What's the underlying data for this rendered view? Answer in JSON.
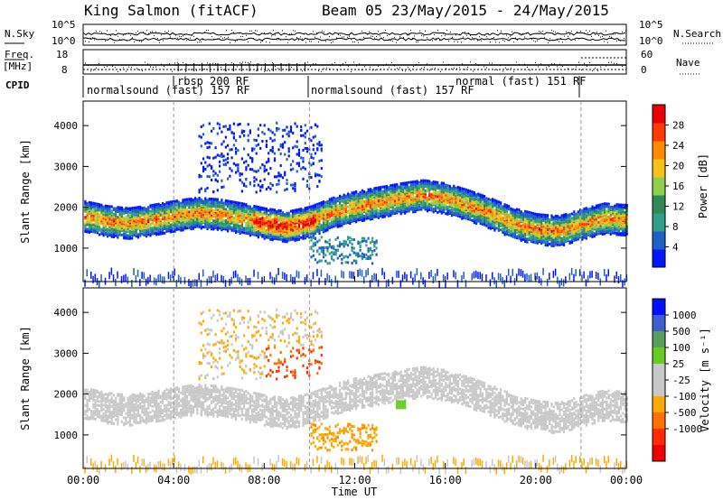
{
  "header": {
    "station": "King Salmon (fitACF)",
    "beam_date": "Beam 05 23/May/2015 - 24/May/2015"
  },
  "noise_panel": {
    "left_label": "N.Sky",
    "right_label": "N.Search",
    "left_ticks": [
      "10^5",
      "10^0"
    ],
    "right_ticks": [
      "10^5",
      "10^0"
    ]
  },
  "freq_panel": {
    "left_label_line1": "Freq.",
    "left_label_line2": "[MHz]",
    "right_label": "Nave",
    "left_ticks": [
      "18",
      "8"
    ],
    "right_ticks": [
      "60",
      "0"
    ]
  },
  "cpid": {
    "label": "CPID",
    "segments": [
      "normalsound (fast) 157 RF",
      "rbsp 200 RF",
      "normalsound (fast) 157 RF",
      "normal (fast) 151 RF"
    ]
  },
  "x_axis": {
    "label": "Time UT",
    "ticks": [
      "00:00",
      "04:00",
      "08:00",
      "12:00",
      "16:00",
      "20:00",
      "00:00"
    ]
  },
  "y_axis": {
    "label": "Slant Range [km]",
    "ticks": [
      "1000",
      "2000",
      "3000",
      "4000"
    ]
  },
  "colors": {
    "power_scale": [
      "#0018ff",
      "#1f5fc8",
      "#2f9f8a",
      "#2e8b57",
      "#8fd14f",
      "#f6c21a",
      "#ff8a00",
      "#ff3a00",
      "#e80000"
    ],
    "velocity_scale": [
      "#0011ff",
      "#3f5fcf",
      "#5aa05a",
      "#66cc22",
      "#c8c8c8",
      "#c8c8c8",
      "#ffaa00",
      "#ff7000",
      "#ff2a00",
      "#ee0000"
    ]
  },
  "chart_data": [
    {
      "type": "heatmap",
      "title": "Power",
      "xlabel": "Time UT",
      "ylabel": "Slant Range [km]",
      "x_ticks": [
        "00:00",
        "04:00",
        "08:00",
        "12:00",
        "16:00",
        "20:00",
        "00:00"
      ],
      "xlim_hours": [
        0,
        24
      ],
      "ylim": [
        180,
        4600
      ],
      "colorbar_label": "Power [dB]",
      "colorbar_ticks": [
        4,
        8,
        12,
        16,
        20,
        24,
        28
      ],
      "colorbar_range": [
        0,
        32
      ],
      "main_band_center_km": [
        [
          0,
          1820
        ],
        [
          1,
          1700
        ],
        [
          2,
          1640
        ],
        [
          3,
          1720
        ],
        [
          4,
          1820
        ],
        [
          5,
          1900
        ],
        [
          6,
          1860
        ],
        [
          7,
          1760
        ],
        [
          8,
          1640
        ],
        [
          9,
          1560
        ],
        [
          10,
          1680
        ],
        [
          11,
          1900
        ],
        [
          12,
          2050
        ],
        [
          13,
          2150
        ],
        [
          14,
          2250
        ],
        [
          15,
          2330
        ],
        [
          16,
          2250
        ],
        [
          17,
          2080
        ],
        [
          18,
          1880
        ],
        [
          19,
          1640
        ],
        [
          20,
          1500
        ],
        [
          21,
          1450
        ],
        [
          22,
          1620
        ],
        [
          23,
          1760
        ],
        [
          24,
          1720
        ]
      ],
      "peak_power_dB": 30
    },
    {
      "type": "heatmap",
      "title": "Velocity",
      "xlabel": "Time UT",
      "ylabel": "Slant Range [km]",
      "x_ticks": [
        "00:00",
        "04:00",
        "08:00",
        "12:00",
        "16:00",
        "20:00",
        "00:00"
      ],
      "xlim_hours": [
        0,
        24
      ],
      "ylim": [
        180,
        4600
      ],
      "colorbar_label": "Velocity [m s⁻¹]",
      "colorbar_ticks": [
        "1000",
        "500",
        "100",
        "25",
        "-25",
        "-100",
        "-500",
        "-1000"
      ],
      "dominant_velocity_band_m_s": [
        -25,
        25
      ],
      "strong_negative_region": {
        "time_hours": [
          10.8,
          12.4
        ],
        "range_km": [
          650,
          1300
        ],
        "velocity_m_s": -300
      },
      "red_high_range_region": {
        "time_hours": [
          8,
          11
        ],
        "range_km": [
          2100,
          3200
        ],
        "velocity_m_s": -800
      }
    }
  ]
}
